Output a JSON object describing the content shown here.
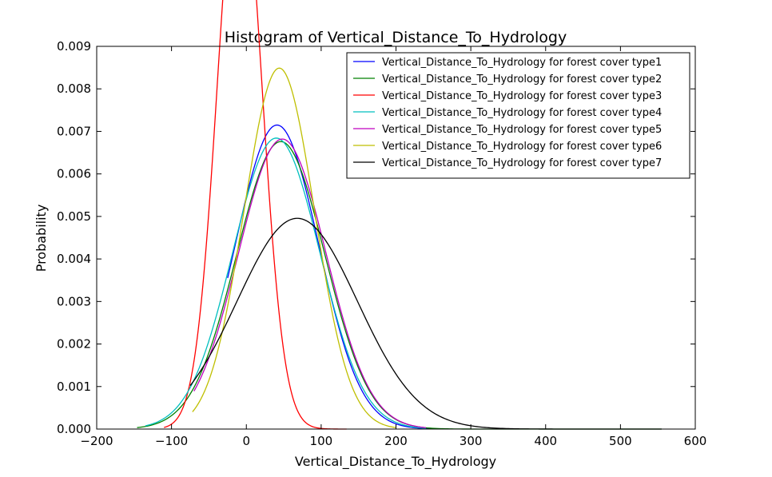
{
  "chart_data": {
    "type": "line",
    "title": "Histogram of Vertical_Distance_To_Hydrology",
    "xlabel": "Vertical_Distance_To_Hydrology",
    "ylabel": "Probability",
    "xlim": [
      -200,
      600
    ],
    "ylim": [
      0,
      0.009
    ],
    "xticks": [
      -200,
      -100,
      0,
      100,
      200,
      300,
      400,
      500,
      600
    ],
    "xtick_labels": [
      "−200",
      "−100",
      "0",
      "100",
      "200",
      "300",
      "400",
      "500",
      "600"
    ],
    "yticks": [
      0,
      0.001,
      0.002,
      0.003,
      0.004,
      0.005,
      0.006,
      0.007,
      0.008,
      0.009
    ],
    "ytick_labels": [
      "0.000",
      "0.001",
      "0.002",
      "0.003",
      "0.004",
      "0.005",
      "0.006",
      "0.007",
      "0.008",
      "0.009"
    ],
    "grid": false,
    "legend_position": "top-right",
    "series": [
      {
        "name": "Vertical_Distance_To_Hydrology for forest cover type1",
        "color": "#0000ff",
        "mean": 41,
        "std": 55.8,
        "x_range": [
          -25,
          263
        ]
      },
      {
        "name": "Vertical_Distance_To_Hydrology for forest cover type2",
        "color": "#008000",
        "mean": 46,
        "std": 59,
        "x_range": [
          -146,
          555
        ]
      },
      {
        "name": "Vertical_Distance_To_Hydrology for forest cover type3",
        "color": "#ff0000",
        "mean": -9,
        "std": 29.5,
        "x_range": [
          -110,
          134
        ]
      },
      {
        "name": "Vertical_Distance_To_Hydrology for forest cover type4",
        "color": "#00bfbf",
        "mean": 40,
        "std": 58.3,
        "x_range": [
          -135,
          240
        ]
      },
      {
        "name": "Vertical_Distance_To_Hydrology for forest cover type5",
        "color": "#bf00bf",
        "mean": 48,
        "std": 58.5,
        "x_range": [
          -70,
          240
        ]
      },
      {
        "name": "Vertical_Distance_To_Hydrology for forest cover type6",
        "color": "#bfbf00",
        "mean": 44,
        "std": 47,
        "x_range": [
          -72,
          200
        ]
      },
      {
        "name": "Vertical_Distance_To_Hydrology for forest cover type7",
        "color": "#000000",
        "mean": 68,
        "std": 80.5,
        "x_range": [
          -75,
          555
        ]
      }
    ]
  }
}
